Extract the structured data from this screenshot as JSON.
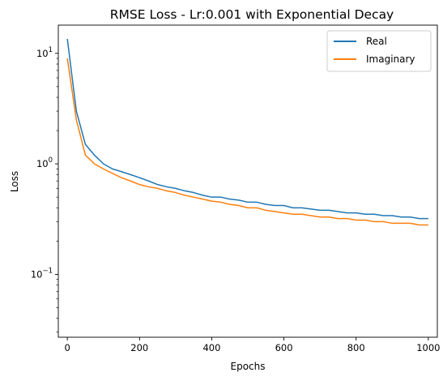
{
  "chart_data": {
    "type": "line",
    "title": "RMSE Loss - Lr:0.001 with Exponential Decay",
    "xlabel": "Epochs",
    "ylabel": "Loss",
    "yscale": "log",
    "xlim": [
      -25,
      1025
    ],
    "ylim": [
      0.027,
      18
    ],
    "x_ticks": [
      0,
      200,
      400,
      600,
      800,
      1000
    ],
    "y_ticks": [
      {
        "value": 0.1,
        "base": "10",
        "exp": "−1"
      },
      {
        "value": 1,
        "base": "10",
        "exp": "0"
      },
      {
        "value": 10,
        "base": "10",
        "exp": "1"
      }
    ],
    "grid": false,
    "legend": {
      "position": "top-right"
    },
    "series": [
      {
        "name": "Real",
        "color": "#1f77b4",
        "x": [
          0,
          25,
          50,
          75,
          100,
          125,
          150,
          175,
          200,
          225,
          250,
          275,
          300,
          325,
          350,
          375,
          400,
          425,
          450,
          475,
          500,
          525,
          550,
          575,
          600,
          625,
          650,
          675,
          700,
          725,
          750,
          775,
          800,
          825,
          850,
          875,
          900,
          925,
          950,
          975,
          1000
        ],
        "y": [
          13.5,
          3.0,
          1.5,
          1.2,
          1.0,
          0.9,
          0.85,
          0.8,
          0.75,
          0.7,
          0.65,
          0.62,
          0.6,
          0.57,
          0.55,
          0.52,
          0.5,
          0.5,
          0.48,
          0.47,
          0.45,
          0.45,
          0.43,
          0.42,
          0.42,
          0.4,
          0.4,
          0.39,
          0.38,
          0.38,
          0.37,
          0.36,
          0.36,
          0.35,
          0.35,
          0.34,
          0.34,
          0.33,
          0.33,
          0.32,
          0.32
        ]
      },
      {
        "name": "Imaginary",
        "color": "#ff7f0e",
        "x": [
          0,
          25,
          50,
          75,
          100,
          125,
          150,
          175,
          200,
          225,
          250,
          275,
          300,
          325,
          350,
          375,
          400,
          425,
          450,
          475,
          500,
          525,
          550,
          575,
          600,
          625,
          650,
          675,
          700,
          725,
          750,
          775,
          800,
          825,
          850,
          875,
          900,
          925,
          950,
          975,
          1000
        ],
        "y": [
          9.0,
          2.5,
          1.2,
          1.0,
          0.9,
          0.82,
          0.75,
          0.7,
          0.65,
          0.62,
          0.6,
          0.57,
          0.55,
          0.52,
          0.5,
          0.48,
          0.46,
          0.45,
          0.43,
          0.42,
          0.4,
          0.4,
          0.38,
          0.37,
          0.36,
          0.35,
          0.35,
          0.34,
          0.33,
          0.33,
          0.32,
          0.32,
          0.31,
          0.31,
          0.3,
          0.3,
          0.29,
          0.29,
          0.29,
          0.28,
          0.28
        ]
      }
    ]
  }
}
